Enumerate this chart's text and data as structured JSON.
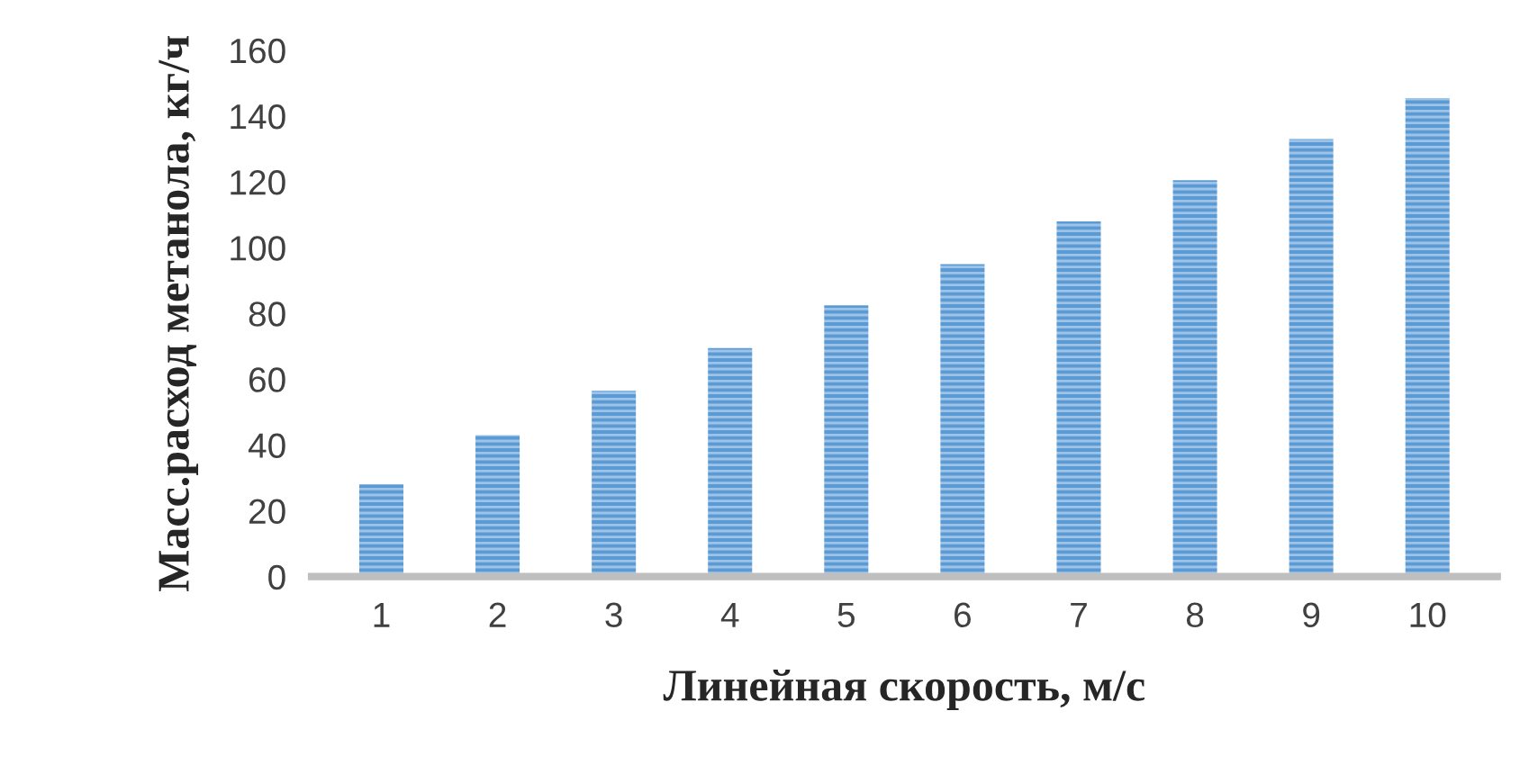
{
  "chart_data": {
    "type": "bar",
    "xlabel": "Линейная скорость, м/с",
    "ylabel": "Масс.расход метанола, кг/ч",
    "categories": [
      "1",
      "2",
      "3",
      "4",
      "5",
      "6",
      "7",
      "8",
      "9",
      "10"
    ],
    "values": [
      28,
      43,
      56.5,
      69.5,
      82.5,
      95,
      108,
      120.5,
      133,
      145.5
    ],
    "color": "#5b9bd5",
    "ylim": [
      0,
      160
    ],
    "yticks": [
      0,
      20,
      40,
      60,
      80,
      100,
      120,
      140,
      160
    ],
    "grid": false
  }
}
